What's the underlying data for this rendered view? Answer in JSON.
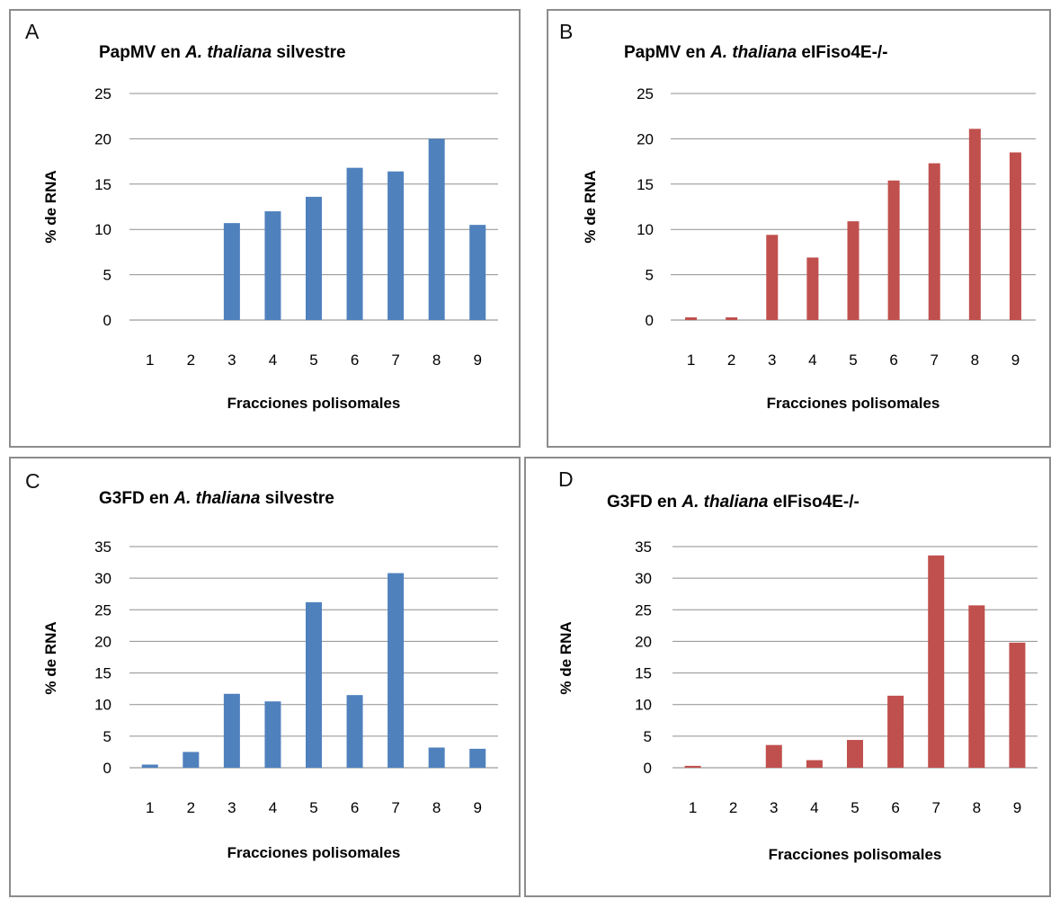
{
  "chart_data": [
    {
      "id": "a",
      "type": "bar",
      "panel_label": "A",
      "title_parts": [
        {
          "text": "PapMV en ",
          "italic": false
        },
        {
          "text": "A. thaliana",
          "italic": true
        },
        {
          "text": " silvestre",
          "italic": false
        }
      ],
      "xlabel": "Fracciones polisomales",
      "ylabel": "% de RNA",
      "categories": [
        "1",
        "2",
        "3",
        "4",
        "5",
        "6",
        "7",
        "8",
        "9"
      ],
      "values": [
        0,
        0,
        10.7,
        12.0,
        13.6,
        16.8,
        16.4,
        20.0,
        10.5
      ],
      "ylim": [
        0,
        25
      ],
      "yticks": [
        "0",
        "5",
        "10",
        "15",
        "20",
        "25"
      ],
      "grid": true,
      "color": "#4f81bd"
    },
    {
      "id": "b",
      "type": "bar",
      "panel_label": "B",
      "title_parts": [
        {
          "text": "PapMV en ",
          "italic": false
        },
        {
          "text": "A. thaliana",
          "italic": true
        },
        {
          "text": " eIFiso4E-/-",
          "italic": false
        }
      ],
      "xlabel": "Fracciones polisomales",
      "ylabel": "% de RNA",
      "categories": [
        "1",
        "2",
        "3",
        "4",
        "5",
        "6",
        "7",
        "8",
        "9"
      ],
      "values": [
        0.3,
        0.3,
        9.4,
        6.9,
        10.9,
        15.4,
        17.3,
        21.1,
        18.5
      ],
      "ylim": [
        0,
        25
      ],
      "yticks": [
        "0",
        "5",
        "10",
        "15",
        "20",
        "25"
      ],
      "grid": true,
      "color": "#c0504d"
    },
    {
      "id": "c",
      "type": "bar",
      "panel_label": "C",
      "title_parts": [
        {
          "text": "G3FD en ",
          "italic": false
        },
        {
          "text": "A. thaliana",
          "italic": true
        },
        {
          "text": " silvestre",
          "italic": false
        }
      ],
      "xlabel": "Fracciones polisomales",
      "ylabel": "% de RNA",
      "categories": [
        "1",
        "2",
        "3",
        "4",
        "5",
        "6",
        "7",
        "8",
        "9"
      ],
      "values": [
        0.5,
        2.5,
        11.7,
        10.5,
        26.2,
        11.5,
        30.8,
        3.2,
        3.0
      ],
      "ylim": [
        0,
        35
      ],
      "yticks": [
        "0",
        "5",
        "10",
        "15",
        "20",
        "25",
        "30",
        "35"
      ],
      "grid": true,
      "color": "#4f81bd"
    },
    {
      "id": "d",
      "type": "bar",
      "panel_label": "D",
      "title_parts": [
        {
          "text": "G3FD en ",
          "italic": false
        },
        {
          "text": "A. thaliana",
          "italic": true
        },
        {
          "text": " eIFiso4E-/-",
          "italic": false
        }
      ],
      "xlabel": "Fracciones polisomales",
      "ylabel": "% de RNA",
      "categories": [
        "1",
        "2",
        "3",
        "4",
        "5",
        "6",
        "7",
        "8",
        "9"
      ],
      "values": [
        0.3,
        0,
        3.6,
        1.2,
        4.4,
        11.4,
        33.6,
        25.7,
        19.8
      ],
      "ylim": [
        0,
        35
      ],
      "yticks": [
        "0",
        "5",
        "10",
        "15",
        "20",
        "25",
        "30",
        "35"
      ],
      "grid": true,
      "color": "#c0504d"
    }
  ]
}
